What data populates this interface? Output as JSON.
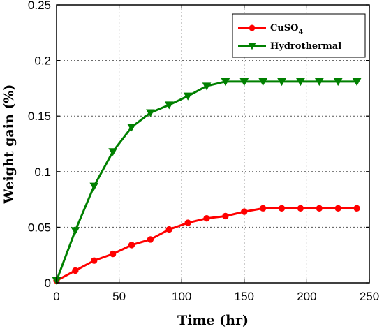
{
  "chart_data": {
    "type": "line",
    "title": "",
    "xlabel": "Time (hr)",
    "ylabel": "Weight gain (%)",
    "xlim": [
      0,
      250
    ],
    "ylim": [
      0,
      0.25
    ],
    "x_ticks": [
      0,
      50,
      100,
      150,
      200,
      250
    ],
    "y_ticks": [
      0,
      0.05,
      0.1,
      0.15,
      0.2,
      0.25
    ],
    "x_tick_labels": [
      "0",
      "50",
      "100",
      "150",
      "200",
      "250"
    ],
    "y_tick_labels": [
      "0",
      "0.05",
      "0.1",
      "0.15",
      "0.2",
      "0.25"
    ],
    "grid": true,
    "legend_position": "top-right",
    "series": [
      {
        "name": "CuSO4",
        "name_main": "CuSO",
        "name_sub": "4",
        "color": "#ff0000",
        "marker": "circle",
        "x": [
          0,
          15,
          30,
          45,
          60,
          75,
          90,
          105,
          120,
          135,
          150,
          165,
          180,
          195,
          210,
          225,
          240
        ],
        "y": [
          0.002,
          0.011,
          0.02,
          0.026,
          0.034,
          0.039,
          0.048,
          0.054,
          0.058,
          0.06,
          0.064,
          0.067,
          0.067,
          0.067,
          0.067,
          0.067,
          0.067
        ]
      },
      {
        "name": "Hydrothermal",
        "color": "#008000",
        "marker": "triangle-down",
        "x": [
          0,
          15,
          30,
          45,
          60,
          75,
          90,
          105,
          120,
          135,
          150,
          165,
          180,
          195,
          210,
          225,
          240
        ],
        "y": [
          0.002,
          0.047,
          0.087,
          0.118,
          0.14,
          0.153,
          0.16,
          0.168,
          0.177,
          0.181,
          0.181,
          0.181,
          0.181,
          0.181,
          0.181,
          0.181,
          0.181
        ]
      }
    ]
  }
}
